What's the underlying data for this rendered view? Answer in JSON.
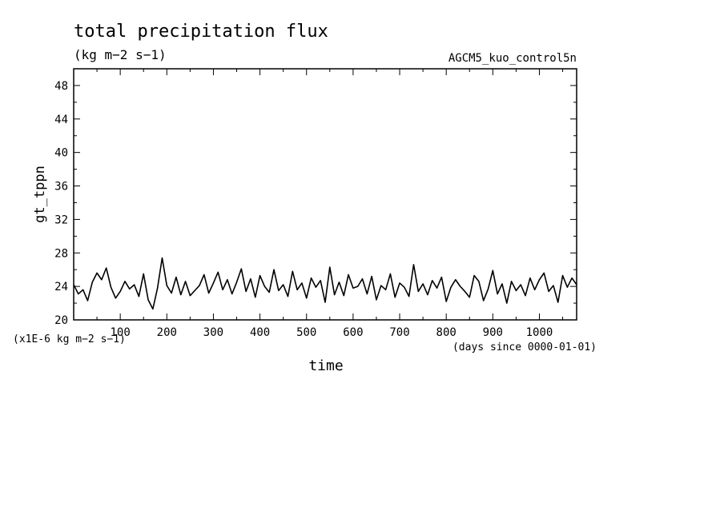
{
  "chart_data": {
    "type": "line",
    "title": "total precipitation flux",
    "subtitle": "(kg m−2 s−1)",
    "run_label": "AGCM5_kuo_control5n",
    "xlabel": "time",
    "ylabel": "gt_tppn",
    "x_unit_label": "(days since 0000-01-01)",
    "y_scale_label": "(x1E-6 kg m−2 s−1)",
    "xlim": [
      0,
      1080
    ],
    "ylim": [
      20,
      50
    ],
    "x_ticks": [
      100,
      200,
      300,
      400,
      500,
      600,
      700,
      800,
      900,
      1000
    ],
    "y_ticks": [
      20,
      24,
      28,
      32,
      36,
      40,
      44,
      48
    ],
    "grid": false,
    "series": [
      {
        "x": [
          0,
          10,
          20,
          30,
          40,
          50,
          60,
          70,
          80,
          90,
          100,
          110,
          120,
          130,
          140,
          150,
          160,
          170,
          180,
          190,
          200,
          210,
          220,
          230,
          240,
          250,
          260,
          270,
          280,
          290,
          300,
          310,
          320,
          330,
          340,
          350,
          360,
          370,
          380,
          390,
          400,
          410,
          420,
          430,
          440,
          450,
          460,
          470,
          480,
          490,
          500,
          510,
          520,
          530,
          540,
          550,
          560,
          570,
          580,
          590,
          600,
          610,
          620,
          630,
          640,
          650,
          660,
          670,
          680,
          690,
          700,
          710,
          720,
          730,
          740,
          750,
          760,
          770,
          780,
          790,
          800,
          810,
          820,
          830,
          840,
          850,
          860,
          870,
          880,
          890,
          900,
          910,
          920,
          930,
          940,
          950,
          960,
          970,
          980,
          990,
          1000,
          1010,
          1020,
          1030,
          1040,
          1050,
          1060,
          1070,
          1080
        ],
        "values": [
          24.2,
          23.1,
          23.6,
          22.3,
          24.5,
          25.6,
          24.8,
          26.2,
          23.9,
          22.6,
          23.4,
          24.6,
          23.7,
          24.2,
          22.8,
          25.5,
          22.4,
          21.3,
          23.8,
          27.4,
          24.1,
          23.2,
          25.1,
          23.0,
          24.6,
          22.9,
          23.5,
          24.1,
          25.4,
          23.2,
          24.4,
          25.7,
          23.6,
          24.8,
          23.1,
          24.5,
          26.1,
          23.4,
          24.9,
          22.7,
          25.3,
          24.0,
          23.3,
          26.0,
          23.5,
          24.2,
          22.8,
          25.8,
          23.6,
          24.4,
          22.6,
          25.0,
          23.9,
          24.7,
          22.1,
          26.3,
          23.0,
          24.5,
          22.9,
          25.4,
          23.8,
          24.0,
          24.9,
          23.1,
          25.2,
          22.4,
          24.1,
          23.6,
          25.5,
          22.7,
          24.4,
          23.9,
          22.8,
          26.6,
          23.4,
          24.3,
          23.0,
          24.7,
          23.8,
          25.1,
          22.2,
          23.9,
          24.8,
          24.0,
          23.4,
          22.7,
          25.3,
          24.6,
          22.3,
          23.7,
          25.9,
          23.1,
          24.3,
          22.0,
          24.6,
          23.5,
          24.2,
          22.9,
          25.0,
          23.6,
          24.8,
          25.6,
          23.4,
          24.1,
          22.1,
          25.3,
          23.9,
          25.0,
          24.2
        ]
      }
    ]
  }
}
